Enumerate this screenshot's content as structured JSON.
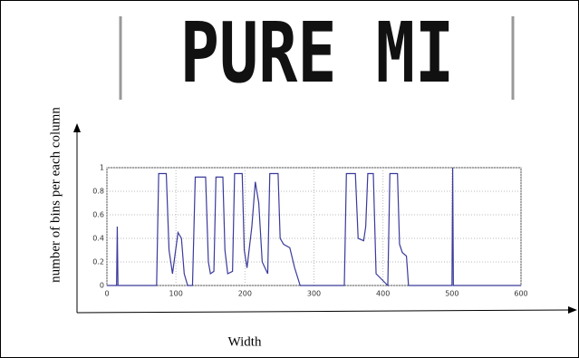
{
  "chart_data": {
    "type": "line",
    "plate_text": "PURE MI",
    "xlabel": "Width",
    "ylabel": "number of bins per each column",
    "x": [
      0,
      14,
      15,
      16,
      72,
      75,
      86,
      90,
      95,
      103,
      108,
      112,
      117,
      124,
      128,
      143,
      147,
      150,
      155,
      158,
      168,
      171,
      175,
      182,
      185,
      196,
      199,
      203,
      210,
      215,
      220,
      225,
      233,
      236,
      248,
      251,
      256,
      265,
      272,
      280,
      344,
      347,
      360,
      364,
      372,
      375,
      378,
      386,
      390,
      407,
      410,
      421,
      424,
      428,
      434,
      437,
      500,
      501,
      502,
      600
    ],
    "values": [
      0,
      0,
      0.5,
      0,
      0,
      0.95,
      0.95,
      0.3,
      0.1,
      0.45,
      0.4,
      0.1,
      0,
      0,
      0.92,
      0.92,
      0.2,
      0.1,
      0.12,
      0.92,
      0.92,
      0.3,
      0.1,
      0.12,
      0.95,
      0.95,
      0.3,
      0.15,
      0.5,
      0.88,
      0.7,
      0.2,
      0.1,
      0.95,
      0.95,
      0.4,
      0.35,
      0.32,
      0.15,
      0,
      0,
      0.95,
      0.95,
      0.4,
      0.38,
      0.5,
      0.95,
      0.95,
      0.1,
      0,
      0.95,
      0.95,
      0.35,
      0.28,
      0.25,
      0,
      0,
      1,
      0,
      0
    ],
    "color": "#3a3a9c",
    "xlim": [
      0,
      600
    ],
    "xticks": [
      0,
      100,
      200,
      300,
      400,
      500,
      600
    ],
    "ylim": [
      0,
      1
    ],
    "yticks": [
      0,
      0.2,
      0.4,
      0.6,
      0.8,
      1
    ],
    "grid": true
  }
}
